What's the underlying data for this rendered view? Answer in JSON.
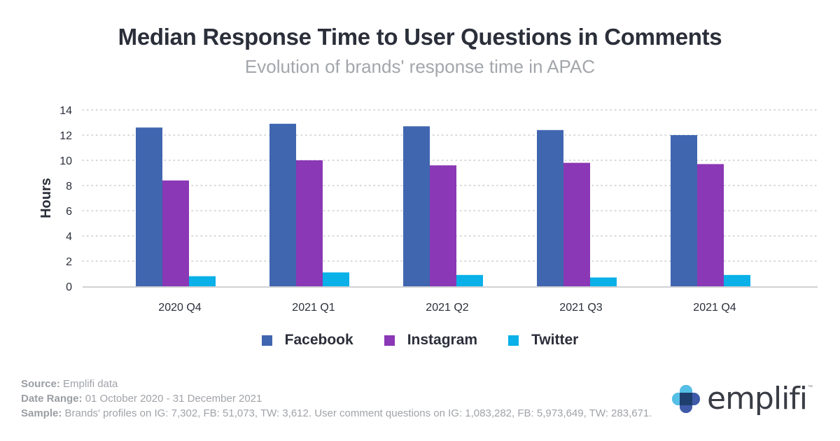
{
  "header": {
    "title": "Median Response Time to User Questions in Comments",
    "subtitle": "Evolution of brands' response time in APAC"
  },
  "chart_data": {
    "type": "bar",
    "title": "Median Response Time to User Questions in Comments",
    "subtitle": "Evolution of brands' response time in APAC",
    "xlabel": "",
    "ylabel": "Hours",
    "ylim": [
      0,
      14
    ],
    "yticks": [
      0,
      2,
      4,
      6,
      8,
      10,
      12,
      14
    ],
    "grid": true,
    "legend_position": "bottom-center",
    "categories": [
      "2020 Q4",
      "2021 Q1",
      "2021 Q2",
      "2021 Q3",
      "2021 Q4"
    ],
    "series": [
      {
        "name": "Facebook",
        "color": "#4166b0",
        "values": [
          12.6,
          12.9,
          12.7,
          12.4,
          12.0
        ]
      },
      {
        "name": "Instagram",
        "color": "#8a38b5",
        "values": [
          8.4,
          10.0,
          9.6,
          9.8,
          9.7
        ]
      },
      {
        "name": "Twitter",
        "color": "#0ab0e8",
        "values": [
          0.8,
          1.1,
          0.9,
          0.7,
          0.9
        ]
      }
    ]
  },
  "footer": {
    "source_label": "Source:",
    "source_value": " Emplifi data",
    "date_label": "Date Range:",
    "date_value": " 01 October 2020 - 31 December 2021",
    "sample_label": "Sample:",
    "sample_value": " Brands' profiles on IG: 7,302, FB: 51,073, TW: 3,612. User comment questions on IG: 1,083,282, FB: 5,973,649, TW: 283,671."
  },
  "logo": {
    "text": "emplifi",
    "tm": "™",
    "icon": "emplifi-plus-logo-icon"
  }
}
